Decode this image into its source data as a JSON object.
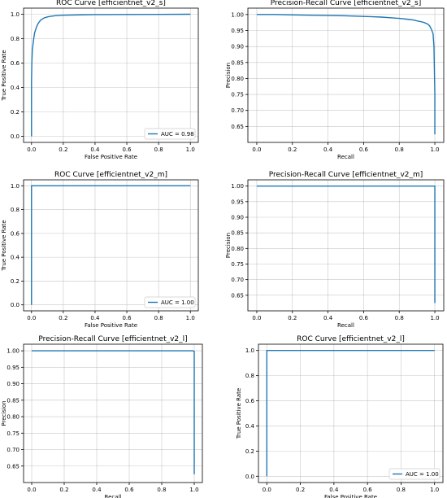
{
  "chart_data": [
    {
      "type": "line",
      "title": "ROC Curve [efficientnet_v2_s]",
      "xlabel": "False Positive Rate",
      "ylabel": "True Positive Rate",
      "xlim": [
        -0.05,
        1.05
      ],
      "ylim": [
        -0.05,
        1.05
      ],
      "xticks": [
        0.0,
        0.2,
        0.4,
        0.6,
        0.8,
        1.0
      ],
      "yticks": [
        0.0,
        0.2,
        0.4,
        0.6,
        0.8,
        1.0
      ],
      "grid": true,
      "legend": "lower-right",
      "series": [
        {
          "name": "AUC = 0.98",
          "x": [
            0.0,
            0.0,
            0.002,
            0.005,
            0.01,
            0.015,
            0.02,
            0.03,
            0.04,
            0.05,
            0.06,
            0.08,
            0.1,
            0.12,
            0.15,
            0.2,
            0.3,
            0.4,
            0.6,
            0.8,
            1.0
          ],
          "y": [
            0.0,
            0.45,
            0.6,
            0.7,
            0.76,
            0.81,
            0.85,
            0.89,
            0.92,
            0.94,
            0.955,
            0.97,
            0.978,
            0.983,
            0.988,
            0.992,
            0.995,
            0.997,
            0.998,
            0.999,
            1.0
          ]
        }
      ]
    },
    {
      "type": "line",
      "title": "Precision-Recall Curve [efficientnet_v2_s]",
      "xlabel": "Recall",
      "ylabel": "Precision",
      "xlim": [
        -0.05,
        1.05
      ],
      "ylim": [
        0.6,
        1.02
      ],
      "xticks": [
        0.0,
        0.2,
        0.4,
        0.6,
        0.8,
        1.0
      ],
      "yticks": [
        0.65,
        0.7,
        0.75,
        0.8,
        0.85,
        0.9,
        0.95,
        1.0
      ],
      "grid": true,
      "series": [
        {
          "x": [
            0.0,
            0.1,
            0.2,
            0.3,
            0.4,
            0.5,
            0.55,
            0.6,
            0.65,
            0.7,
            0.75,
            0.8,
            0.85,
            0.88,
            0.9,
            0.92,
            0.94,
            0.96,
            0.97,
            0.98,
            0.99,
            0.995,
            1.0,
            1.0
          ],
          "y": [
            1.0,
            1.0,
            0.999,
            0.998,
            0.997,
            0.996,
            0.995,
            0.994,
            0.993,
            0.992,
            0.99,
            0.988,
            0.985,
            0.983,
            0.98,
            0.978,
            0.975,
            0.97,
            0.965,
            0.955,
            0.94,
            0.9,
            0.75,
            0.625
          ]
        }
      ]
    },
    {
      "type": "line",
      "title": "ROC Curve [efficientnet_v2_m]",
      "xlabel": "False Positive Rate",
      "ylabel": "True Positive Rate",
      "xlim": [
        -0.05,
        1.05
      ],
      "ylim": [
        -0.05,
        1.05
      ],
      "xticks": [
        0.0,
        0.2,
        0.4,
        0.6,
        0.8,
        1.0
      ],
      "yticks": [
        0.0,
        0.2,
        0.4,
        0.6,
        0.8,
        1.0
      ],
      "grid": true,
      "legend": "lower-right",
      "series": [
        {
          "name": "AUC = 1.00",
          "x": [
            0.0,
            0.0,
            1.0
          ],
          "y": [
            0.0,
            1.0,
            1.0
          ]
        }
      ]
    },
    {
      "type": "line",
      "title": "Precision-Recall Curve [efficientnet_v2_m]",
      "xlabel": "Recall",
      "ylabel": "Precision",
      "xlim": [
        -0.05,
        1.05
      ],
      "ylim": [
        0.6,
        1.02
      ],
      "xticks": [
        0.0,
        0.2,
        0.4,
        0.6,
        0.8,
        1.0
      ],
      "yticks": [
        0.65,
        0.7,
        0.75,
        0.8,
        0.85,
        0.9,
        0.95,
        1.0
      ],
      "grid": true,
      "series": [
        {
          "x": [
            0.0,
            1.0,
            1.0
          ],
          "y": [
            1.0,
            1.0,
            0.625
          ]
        }
      ]
    },
    {
      "type": "line",
      "title": "Precision-Recall Curve [efficientnet_v2_l]",
      "xlabel": "Recall",
      "ylabel": "Precision",
      "xlim": [
        -0.05,
        1.05
      ],
      "ylim": [
        0.6,
        1.02
      ],
      "xticks": [
        0.0,
        0.2,
        0.4,
        0.6,
        0.8,
        1.0
      ],
      "yticks": [
        0.65,
        0.7,
        0.75,
        0.8,
        0.85,
        0.9,
        0.95,
        1.0
      ],
      "grid": true,
      "series": [
        {
          "x": [
            0.0,
            0.99,
            1.0,
            1.0
          ],
          "y": [
            1.0,
            1.0,
            0.998,
            0.625
          ]
        }
      ]
    },
    {
      "type": "line",
      "title": "ROC Curve [efficientnet_v2_l]",
      "xlabel": "False Positive Rate",
      "ylabel": "True Positive Rate",
      "xlim": [
        -0.05,
        1.05
      ],
      "ylim": [
        -0.05,
        1.05
      ],
      "xticks": [
        0.0,
        0.2,
        0.4,
        0.6,
        0.8,
        1.0
      ],
      "yticks": [
        0.0,
        0.2,
        0.4,
        0.6,
        0.8,
        1.0
      ],
      "grid": true,
      "legend": "lower-right",
      "series": [
        {
          "name": "AUC = 1.00",
          "x": [
            0.0,
            0.0,
            1.0
          ],
          "y": [
            0.0,
            1.0,
            1.0
          ]
        }
      ]
    }
  ]
}
